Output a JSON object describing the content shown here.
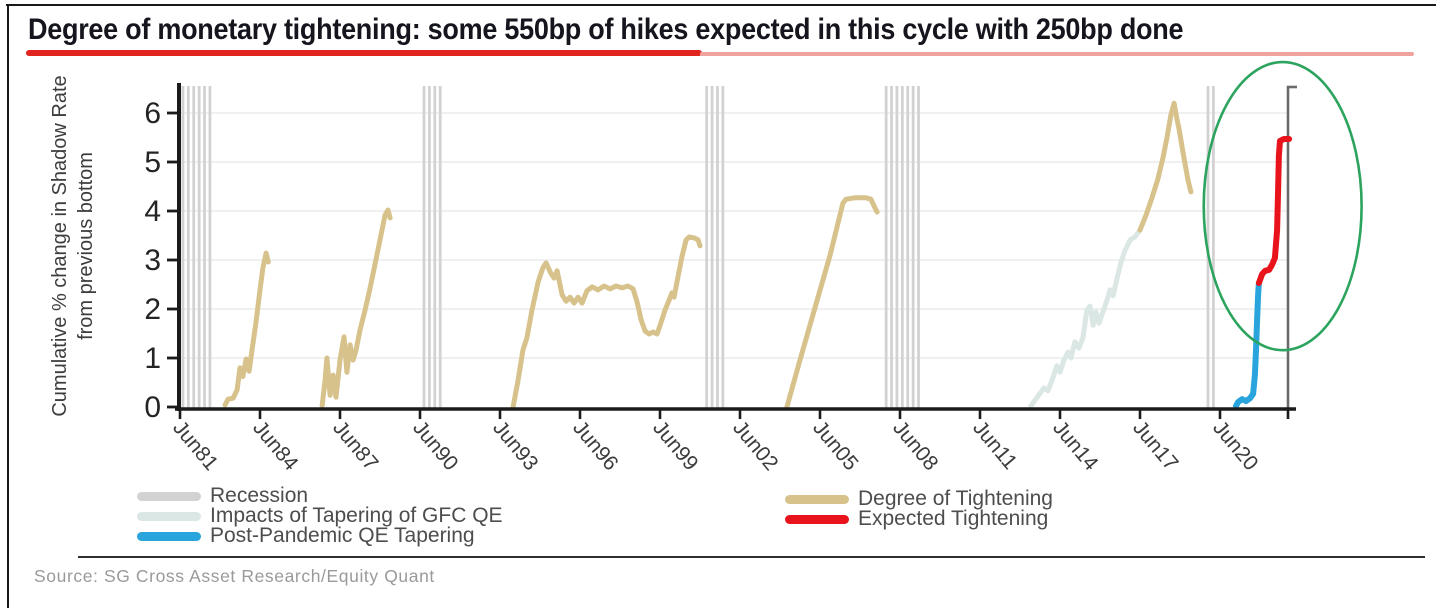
{
  "title": {
    "text": "Degree of monetary tightening: some 550bp of hikes expected in this cycle with 250bp done",
    "underline_color": "#e2241f",
    "underline_color_light": "#f0a29e"
  },
  "source": {
    "text": "Source: SG Cross Asset Research/Equity Quant"
  },
  "legend": {
    "left": [
      {
        "key": "recession",
        "label": "Recession",
        "color": "#d2d2d2"
      },
      {
        "key": "gfc-qe-tapering",
        "label": "Impacts of Tapering of GFC QE",
        "color": "#dbe7e4"
      },
      {
        "key": "post-pandemic-qe-tapering",
        "label": "Post-Pandemic QE Tapering",
        "color": "#29a4dc"
      }
    ],
    "right": [
      {
        "key": "degree-of-tightening",
        "label": "Degree of Tightening",
        "color": "#d8c28c"
      },
      {
        "key": "expected-tightening",
        "label": "Expected Tightening",
        "color": "#e8131b"
      }
    ]
  },
  "chart_data": {
    "type": "line",
    "ylabel_line1": "Cumulative % change in Shadow Rate",
    "ylabel_line2": "from previous bottom",
    "y_ticks": [
      0,
      1,
      2,
      3,
      4,
      5,
      6
    ],
    "ylim": [
      0,
      6.5
    ],
    "xlim": [
      1981.35,
      2023.3
    ],
    "grid": true,
    "grid_color": "#ebebeb",
    "axis_color": "#1b1b1b",
    "right_axis_color": "#6b6b6b",
    "recession_color": "#d2d2d2",
    "x_ticks": [
      {
        "label": "Jun81",
        "year": 1981.45
      },
      {
        "label": "Jun84",
        "year": 1984.45
      },
      {
        "label": "Jun87",
        "year": 1987.45
      },
      {
        "label": "Jun90",
        "year": 1990.45
      },
      {
        "label": "Jun93",
        "year": 1993.45
      },
      {
        "label": "Jun96",
        "year": 1996.45
      },
      {
        "label": "Jun99",
        "year": 1999.45
      },
      {
        "label": "Jun02",
        "year": 2002.45
      },
      {
        "label": "Jun05",
        "year": 2005.45
      },
      {
        "label": "Jun08",
        "year": 2008.45
      },
      {
        "label": "Jun11",
        "year": 2011.45
      },
      {
        "label": "Jun14",
        "year": 2014.45
      },
      {
        "label": "Jun17",
        "year": 2017.45
      },
      {
        "label": "Jun20",
        "year": 2020.45
      }
    ],
    "recession_bands": [
      [
        1981.56,
        1982.76
      ],
      [
        1990.6,
        1991.28
      ],
      [
        2001.2,
        2001.88
      ],
      [
        2007.93,
        2009.31
      ],
      [
        2020.0,
        2020.23
      ]
    ],
    "series": [
      {
        "key": "gfc-qe-tapering",
        "name": "Impacts of Tapering of GFC QE",
        "color": "#dbe7e4",
        "width": 5,
        "segments": [
          [
            [
              2013.36,
              0.02
            ],
            [
              2013.62,
              0.22
            ],
            [
              2013.85,
              0.39
            ],
            [
              2014.0,
              0.33
            ],
            [
              2014.18,
              0.59
            ],
            [
              2014.33,
              0.84
            ],
            [
              2014.45,
              0.71
            ],
            [
              2014.6,
              0.96
            ],
            [
              2014.75,
              1.12
            ],
            [
              2014.86,
              1.0
            ],
            [
              2015.01,
              1.33
            ],
            [
              2015.16,
              1.2
            ],
            [
              2015.31,
              1.41
            ],
            [
              2015.46,
              1.98
            ],
            [
              2015.58,
              2.06
            ],
            [
              2015.69,
              1.67
            ],
            [
              2015.8,
              1.94
            ],
            [
              2015.91,
              1.71
            ],
            [
              2016.06,
              1.94
            ],
            [
              2016.21,
              2.18
            ],
            [
              2016.33,
              2.39
            ],
            [
              2016.44,
              2.27
            ],
            [
              2016.59,
              2.63
            ],
            [
              2016.74,
              2.96
            ],
            [
              2016.89,
              3.2
            ],
            [
              2017.08,
              3.41
            ],
            [
              2017.26,
              3.47
            ],
            [
              2017.45,
              3.61
            ]
          ]
        ]
      },
      {
        "key": "degree-of-tightening",
        "name": "Degree of Tightening",
        "color": "#d8c28c",
        "width": 5,
        "segments": [
          [
            [
              1983.14,
              0.04
            ],
            [
              1983.25,
              0.16
            ],
            [
              1983.44,
              0.18
            ],
            [
              1983.59,
              0.35
            ],
            [
              1983.7,
              0.8
            ],
            [
              1983.81,
              0.62
            ],
            [
              1983.93,
              0.98
            ],
            [
              1984.04,
              0.73
            ],
            [
              1984.15,
              1.16
            ],
            [
              1984.3,
              1.73
            ],
            [
              1984.45,
              2.39
            ],
            [
              1984.56,
              2.84
            ],
            [
              1984.68,
              3.14
            ],
            [
              1984.76,
              2.96
            ]
          ],
          [
            [
              1986.78,
              0.02
            ],
            [
              1986.89,
              0.55
            ],
            [
              1986.96,
              1.0
            ],
            [
              1987.08,
              0.24
            ],
            [
              1987.19,
              0.65
            ],
            [
              1987.3,
              0.2
            ],
            [
              1987.45,
              0.96
            ],
            [
              1987.6,
              1.43
            ],
            [
              1987.71,
              0.71
            ],
            [
              1987.83,
              1.27
            ],
            [
              1987.94,
              0.96
            ],
            [
              1988.05,
              1.16
            ],
            [
              1988.2,
              1.57
            ],
            [
              1988.39,
              1.98
            ],
            [
              1988.58,
              2.43
            ],
            [
              1988.76,
              2.9
            ],
            [
              1988.95,
              3.41
            ],
            [
              1989.14,
              3.92
            ],
            [
              1989.25,
              4.02
            ],
            [
              1989.33,
              3.86
            ]
          ],
          [
            [
              1993.94,
              0.0
            ],
            [
              1994.13,
              0.55
            ],
            [
              1994.31,
              1.16
            ],
            [
              1994.46,
              1.41
            ],
            [
              1994.65,
              1.98
            ],
            [
              1994.88,
              2.55
            ],
            [
              1995.06,
              2.84
            ],
            [
              1995.18,
              2.94
            ],
            [
              1995.33,
              2.76
            ],
            [
              1995.48,
              2.63
            ],
            [
              1995.59,
              2.78
            ],
            [
              1995.78,
              2.29
            ],
            [
              1995.93,
              2.16
            ],
            [
              1996.08,
              2.24
            ],
            [
              1996.23,
              2.12
            ],
            [
              1996.38,
              2.24
            ],
            [
              1996.53,
              2.12
            ],
            [
              1996.71,
              2.37
            ],
            [
              1996.9,
              2.45
            ],
            [
              1997.13,
              2.39
            ],
            [
              1997.35,
              2.47
            ],
            [
              1997.58,
              2.41
            ],
            [
              1997.8,
              2.47
            ],
            [
              1998.03,
              2.43
            ],
            [
              1998.25,
              2.47
            ],
            [
              1998.44,
              2.41
            ],
            [
              1998.59,
              2.14
            ],
            [
              1998.74,
              1.78
            ],
            [
              1998.89,
              1.55
            ],
            [
              1999.04,
              1.49
            ],
            [
              1999.19,
              1.53
            ],
            [
              1999.34,
              1.49
            ],
            [
              1999.49,
              1.73
            ],
            [
              1999.64,
              1.98
            ],
            [
              1999.79,
              2.18
            ],
            [
              1999.9,
              2.33
            ],
            [
              1999.98,
              2.24
            ],
            [
              2000.13,
              2.67
            ],
            [
              2000.28,
              3.08
            ],
            [
              2000.43,
              3.41
            ],
            [
              2000.54,
              3.47
            ],
            [
              2000.73,
              3.45
            ],
            [
              2000.88,
              3.41
            ],
            [
              2000.95,
              3.29
            ]
          ],
          [
            [
              2004.21,
              0.0
            ],
            [
              2004.7,
              0.96
            ],
            [
              2005.26,
              2.02
            ],
            [
              2005.83,
              3.1
            ],
            [
              2006.31,
              4.16
            ],
            [
              2006.43,
              4.24
            ],
            [
              2006.76,
              4.27
            ],
            [
              2007.18,
              4.27
            ],
            [
              2007.36,
              4.24
            ],
            [
              2007.48,
              4.1
            ],
            [
              2007.59,
              3.98
            ]
          ],
          [
            [
              2017.45,
              3.61
            ],
            [
              2017.68,
              3.92
            ],
            [
              2017.9,
              4.27
            ],
            [
              2018.13,
              4.67
            ],
            [
              2018.31,
              5.08
            ],
            [
              2018.46,
              5.49
            ],
            [
              2018.61,
              5.96
            ],
            [
              2018.73,
              6.2
            ],
            [
              2018.84,
              5.86
            ],
            [
              2018.91,
              5.69
            ],
            [
              2019.1,
              5.08
            ],
            [
              2019.25,
              4.63
            ],
            [
              2019.36,
              4.39
            ]
          ]
        ]
      },
      {
        "key": "post-pandemic-qe-tapering",
        "name": "Post-Pandemic QE Tapering",
        "color": "#29a4dc",
        "width": 6,
        "segments": [
          [
            [
              2021.05,
              0.02
            ],
            [
              2021.13,
              0.1
            ],
            [
              2021.28,
              0.16
            ],
            [
              2021.43,
              0.12
            ],
            [
              2021.58,
              0.18
            ],
            [
              2021.69,
              0.27
            ],
            [
              2021.76,
              0.65
            ],
            [
              2021.8,
              1.16
            ],
            [
              2021.84,
              1.78
            ],
            [
              2021.88,
              2.29
            ],
            [
              2021.91,
              2.53
            ]
          ]
        ]
      },
      {
        "key": "expected-tightening",
        "name": "Expected Tightening",
        "color": "#e8131b",
        "width": 6,
        "segments": [
          [
            [
              2021.91,
              2.53
            ],
            [
              2022.03,
              2.71
            ],
            [
              2022.14,
              2.78
            ],
            [
              2022.29,
              2.8
            ],
            [
              2022.4,
              2.9
            ],
            [
              2022.51,
              3.04
            ],
            [
              2022.59,
              3.61
            ],
            [
              2022.63,
              4.43
            ],
            [
              2022.66,
              5.14
            ],
            [
              2022.7,
              5.43
            ],
            [
              2022.85,
              5.47
            ],
            [
              2023.04,
              5.47
            ]
          ]
        ]
      }
    ],
    "annotation_ellipse": {
      "center_year": 2022.8,
      "center_value": 4.1,
      "rx_years": 2.96,
      "ry_values": 2.94,
      "color": "#2ca45e"
    }
  }
}
